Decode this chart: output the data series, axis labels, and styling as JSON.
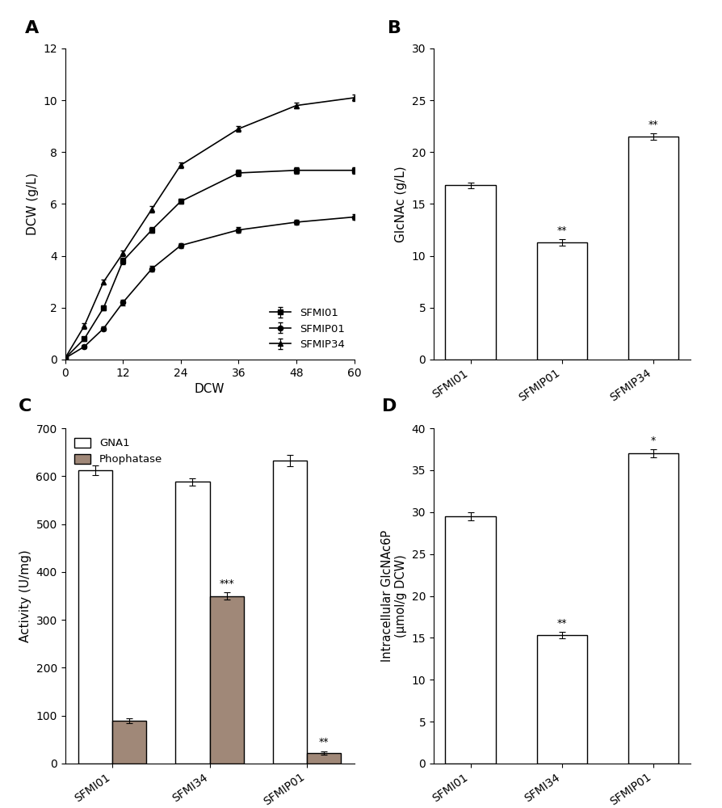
{
  "panel_A": {
    "title": "A",
    "xlabel": "DCW",
    "ylabel": "DCW (g/L)",
    "ylim": [
      0,
      12
    ],
    "xlim": [
      0,
      60
    ],
    "xticks": [
      0,
      12,
      24,
      36,
      48,
      60
    ],
    "yticks": [
      0,
      2,
      4,
      6,
      8,
      10,
      12
    ],
    "series": {
      "SFMI01": {
        "x": [
          0,
          4,
          8,
          12,
          18,
          24,
          36,
          48,
          60
        ],
        "y": [
          0.05,
          0.8,
          2.0,
          3.8,
          5.0,
          6.1,
          7.2,
          7.3,
          7.3
        ],
        "yerr": [
          0.05,
          0.08,
          0.1,
          0.12,
          0.1,
          0.1,
          0.12,
          0.12,
          0.12
        ],
        "marker": "s",
        "label": "SFMI01"
      },
      "SFMIP01": {
        "x": [
          0,
          4,
          8,
          12,
          18,
          24,
          36,
          48,
          60
        ],
        "y": [
          0.05,
          0.5,
          1.2,
          2.2,
          3.5,
          4.4,
          5.0,
          5.3,
          5.5
        ],
        "yerr": [
          0.05,
          0.06,
          0.08,
          0.1,
          0.1,
          0.1,
          0.1,
          0.1,
          0.1
        ],
        "marker": "o",
        "label": "SFMIP01"
      },
      "SFMIP34": {
        "x": [
          0,
          4,
          8,
          12,
          18,
          24,
          36,
          48,
          60
        ],
        "y": [
          0.05,
          1.3,
          3.0,
          4.1,
          5.8,
          7.5,
          8.9,
          9.8,
          10.1
        ],
        "yerr": [
          0.05,
          0.1,
          0.1,
          0.12,
          0.12,
          0.12,
          0.12,
          0.12,
          0.12
        ],
        "marker": "^",
        "label": "SFMIP34"
      }
    },
    "legend_loc": "lower right"
  },
  "panel_B": {
    "title": "B",
    "ylabel": "GlcNAc (g/L)",
    "ylim": [
      0,
      30
    ],
    "yticks": [
      0,
      5,
      10,
      15,
      20,
      25,
      30
    ],
    "categories": [
      "SFMI01",
      "SFMIP01",
      "SFMIP34"
    ],
    "values": [
      16.8,
      11.3,
      21.5
    ],
    "yerr": [
      0.3,
      0.3,
      0.3
    ],
    "significance": [
      "",
      "**",
      "**"
    ],
    "bar_color": "#ffffff",
    "bar_edgecolor": "#000000"
  },
  "panel_C": {
    "title": "C",
    "ylabel": "Activity (U/mg)",
    "ylim": [
      0,
      700
    ],
    "yticks": [
      0,
      100,
      200,
      300,
      400,
      500,
      600,
      700
    ],
    "categories": [
      "SFMI01",
      "SFMI34",
      "SFMIP01"
    ],
    "GNA1_values": [
      612,
      588,
      633
    ],
    "GNA1_yerr": [
      10,
      8,
      12
    ],
    "Phosphatase_values": [
      90,
      350,
      22
    ],
    "Phosphatase_yerr": [
      5,
      7,
      3
    ],
    "significance_phosphatase": [
      "",
      "***",
      "**"
    ],
    "gna1_color": "#ffffff",
    "phosphatase_color": "#a08878",
    "bar_edgecolor": "#000000"
  },
  "panel_D": {
    "title": "D",
    "ylabel": "Intracellular GlcNAc6P\n(μmol/g DCW)",
    "ylim": [
      0,
      40
    ],
    "yticks": [
      0,
      5,
      10,
      15,
      20,
      25,
      30,
      35,
      40
    ],
    "categories": [
      "SFMI01",
      "SFMI34",
      "SFMIP01"
    ],
    "values": [
      29.5,
      15.3,
      37.0
    ],
    "yerr": [
      0.5,
      0.4,
      0.5
    ],
    "significance": [
      "",
      "**",
      "*"
    ],
    "bar_color": "#ffffff",
    "bar_edgecolor": "#000000"
  },
  "line_color": "#000000",
  "background_color": "#ffffff"
}
